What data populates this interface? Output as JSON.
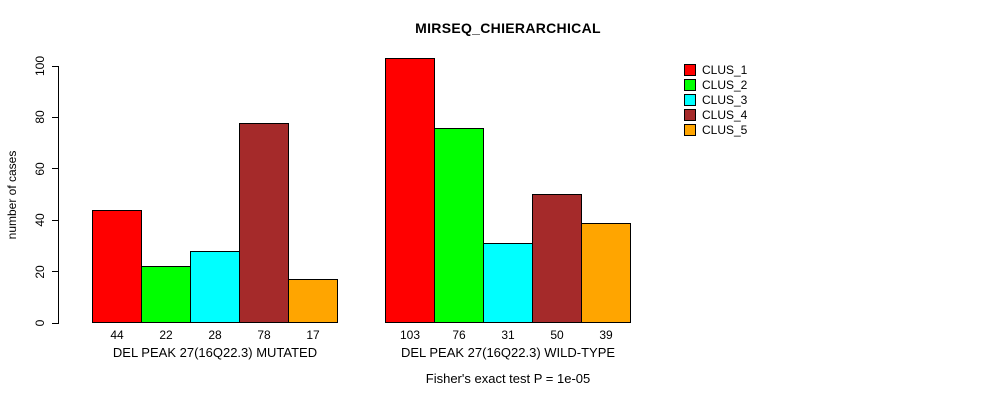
{
  "chart_data": {
    "type": "bar",
    "title": "MIRSEQ_CHIERARCHICAL",
    "ylabel": "number of cases",
    "ylim": [
      0,
      100
    ],
    "yticks": [
      0,
      20,
      40,
      60,
      80,
      100
    ],
    "grid": false,
    "legend_position": "top-right",
    "series_names": [
      "CLUS_1",
      "CLUS_2",
      "CLUS_3",
      "CLUS_4",
      "CLUS_5"
    ],
    "colors": [
      "#FF0000",
      "#00FF00",
      "#00FFFF",
      "#A52A2A",
      "#FFA500"
    ],
    "groups": [
      {
        "label": "DEL PEAK 27(16Q22.3) MUTATED",
        "values": [
          44,
          22,
          28,
          78,
          17
        ]
      },
      {
        "label": "DEL PEAK 27(16Q22.3) WILD-TYPE",
        "values": [
          103,
          76,
          31,
          50,
          39
        ]
      }
    ],
    "annotation": "Fisher's exact test P = 1e-05"
  }
}
